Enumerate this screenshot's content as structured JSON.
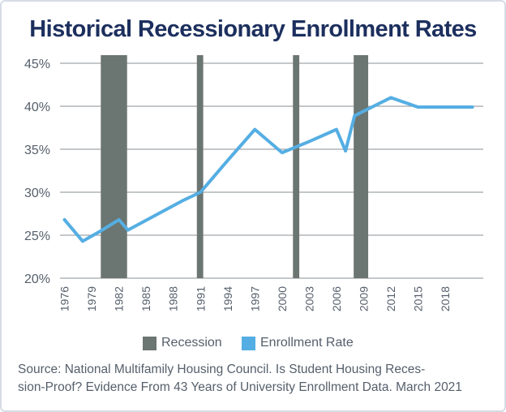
{
  "chart_data": {
    "type": "line",
    "title": "Historical Recessionary Enrollment Rates",
    "ylim": [
      20,
      45
    ],
    "xlim": [
      1975.5,
      2022.2
    ],
    "y_ticks": [
      "20%",
      "25%",
      "30%",
      "35%",
      "40%",
      "45%"
    ],
    "y_tick_values": [
      20,
      25,
      30,
      35,
      40,
      45
    ],
    "x_ticks": [
      "1976",
      "1979",
      "1982",
      "1985",
      "1988",
      "1991",
      "1994",
      "1997",
      "2000",
      "2003",
      "2006",
      "2009",
      "2012",
      "2015",
      "2018"
    ],
    "x_tick_values": [
      1976,
      1979,
      1982,
      1985,
      1988,
      1991,
      1994,
      1997,
      2000,
      2003,
      2006,
      2009,
      2012,
      2015,
      2018
    ],
    "grid": true,
    "legend_placement": "bottom",
    "series": [
      {
        "name": "Enrollment Rate",
        "color": "#55aee3",
        "x": [
          1976,
          1978,
          1980,
          1982,
          1983,
          1986,
          1989,
          1991,
          1994,
          1997,
          2000,
          2003,
          2006,
          2007,
          2008,
          2012,
          2015,
          2018,
          2021
        ],
        "y": [
          26.8,
          24.3,
          25.5,
          26.8,
          25.6,
          27.3,
          29.0,
          30.0,
          33.7,
          37.3,
          34.6,
          35.9,
          37.3,
          34.8,
          38.9,
          41.0,
          39.9,
          39.9,
          39.9
        ]
      }
    ],
    "recessions": {
      "name": "Recession",
      "color": "#6b7571",
      "periods": [
        [
          1980.0,
          1982.9
        ],
        [
          1990.6,
          1991.3
        ],
        [
          2001.2,
          2001.9
        ],
        [
          2007.9,
          2009.5
        ]
      ]
    }
  },
  "legend": {
    "recession_label": "Recession",
    "enrollment_label": "Enrollment Rate"
  },
  "source": "Source: National Multifamily Housing Council. Is Student Housing Reces-\nsion-Proof? Evidence From 43 Years of University Enrollment Data. March 2021"
}
